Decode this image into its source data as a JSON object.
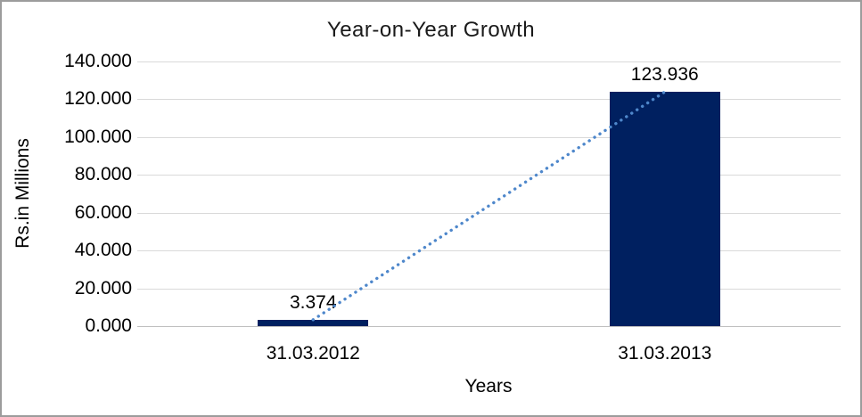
{
  "chart": {
    "title": "Year-on-Year Growth",
    "y_axis_title": "Rs.in Millions",
    "x_axis_title": "Years"
  },
  "chart_data": {
    "type": "bar",
    "title": "Year-on-Year Growth",
    "xlabel": "Years",
    "ylabel": "Rs.in Millions",
    "categories": [
      "31.03.2012",
      "31.03.2013"
    ],
    "values": [
      3.374,
      123.936
    ],
    "data_labels": [
      "3.374",
      "123.936"
    ],
    "ylim": [
      0,
      140
    ],
    "ytick_interval": 20,
    "ytick_labels": [
      "0.000",
      "20.000",
      "40.000",
      "60.000",
      "80.000",
      "100.000",
      "120.000",
      "140.000"
    ],
    "grid": true,
    "legend": "none",
    "colors": {
      "bar": "#002060",
      "trendline": "#4e87cb",
      "gridline": "#d9d9d9",
      "axis_line": "#bfbfbf",
      "text": "#000000"
    },
    "trendline": {
      "type": "linear",
      "style": "dotted",
      "from_category": "31.03.2012",
      "to_category": "31.03.2013"
    }
  }
}
